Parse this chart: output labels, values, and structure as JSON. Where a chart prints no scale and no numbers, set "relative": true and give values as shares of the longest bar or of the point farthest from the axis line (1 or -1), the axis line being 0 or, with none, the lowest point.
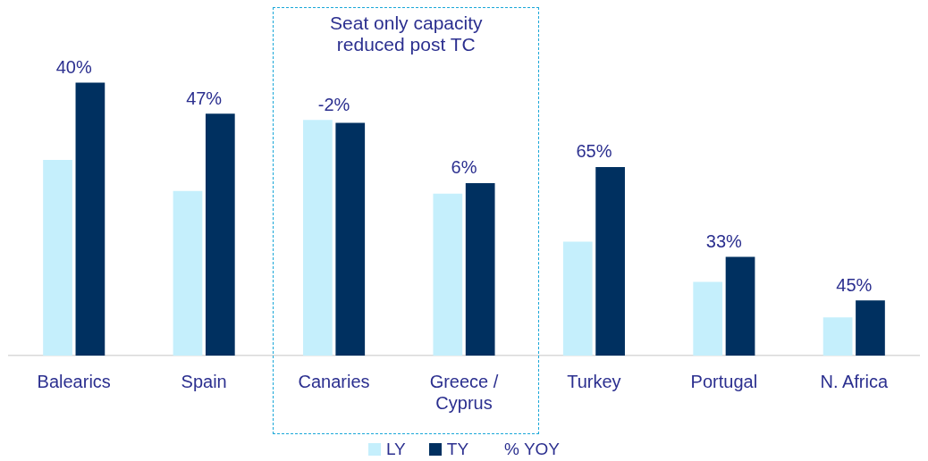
{
  "chart_data": {
    "type": "bar",
    "relative": true,
    "categories": [
      "Balearics",
      "Spain",
      "Canaries",
      "Greece / Cyprus",
      "Turkey",
      "Portugal",
      "N. Africa"
    ],
    "series": [
      {
        "name": "LY",
        "color": "#c5effc",
        "values": [
          0.717,
          0.603,
          0.863,
          0.593,
          0.417,
          0.27,
          0.14
        ]
      },
      {
        "name": "TY",
        "color": "#003060",
        "values": [
          1,
          0.886,
          0.853,
          0.632,
          0.691,
          0.362,
          0.202
        ]
      }
    ],
    "annotations": [
      "40%",
      "47%",
      "-2%",
      "6%",
      "65%",
      "33%",
      "45%",
      "Seat only capacity reduced post TC",
      "% YOY"
    ],
    "legend": "bottom",
    "grid": false
  }
}
